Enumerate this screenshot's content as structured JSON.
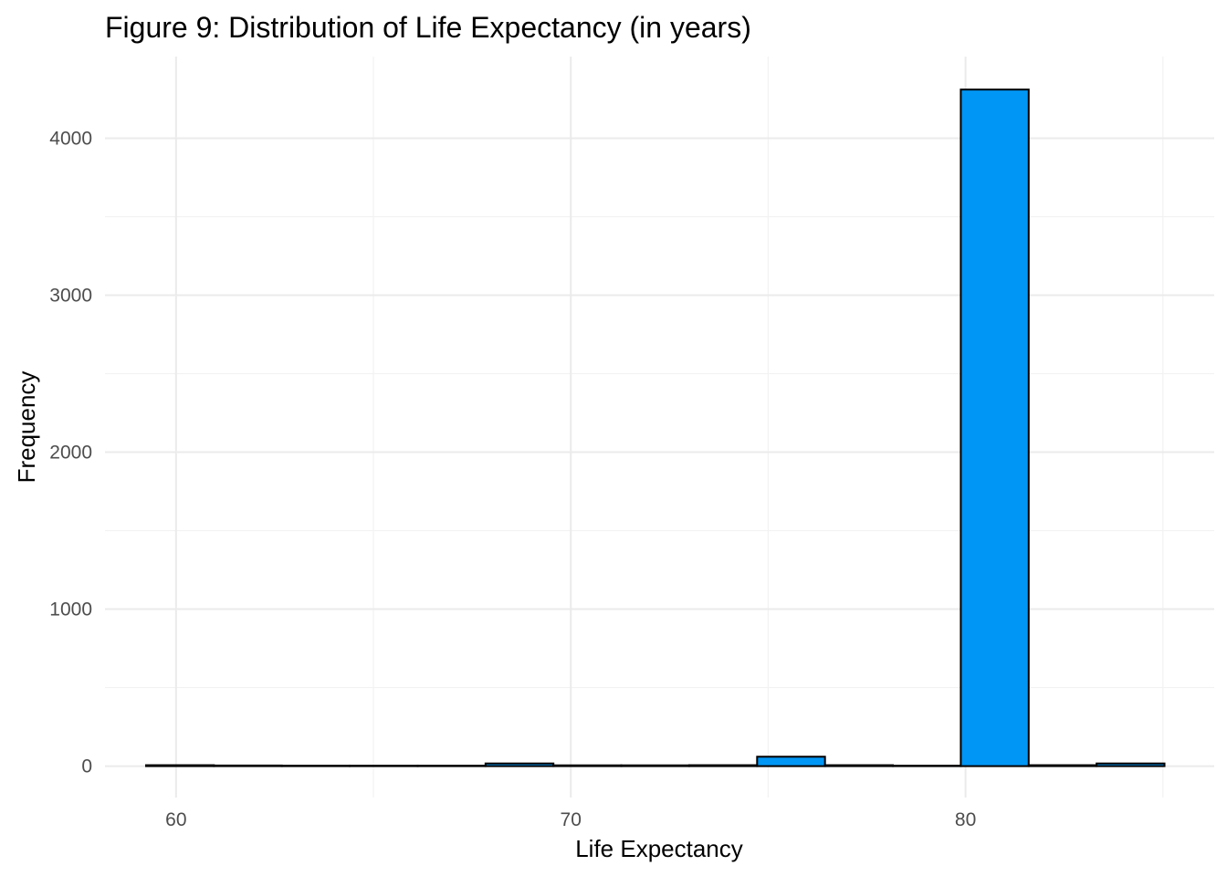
{
  "chart_data": {
    "type": "bar",
    "title": "Figure 9: Distribution of Life Expectancy (in years)",
    "xlabel": "Life Expectancy",
    "ylabel": "Frequency",
    "xlim": [
      58.2,
      86.3
    ],
    "ylim": [
      -200,
      4520
    ],
    "x_ticks": [
      60,
      70,
      80
    ],
    "y_ticks": [
      0,
      1000,
      2000,
      3000,
      4000
    ],
    "bin_width": 1.72,
    "bar_color": "#0096f5",
    "bar_outline": "#000000",
    "grid": true,
    "bins": [
      {
        "x0": 59.24,
        "x1": 60.96,
        "count": 6
      },
      {
        "x0": 60.96,
        "x1": 62.68,
        "count": 4
      },
      {
        "x0": 62.68,
        "x1": 64.4,
        "count": 0
      },
      {
        "x0": 64.4,
        "x1": 66.12,
        "count": 0
      },
      {
        "x0": 66.12,
        "x1": 67.84,
        "count": 0
      },
      {
        "x0": 67.84,
        "x1": 69.56,
        "count": 17
      },
      {
        "x0": 69.56,
        "x1": 71.28,
        "count": 5
      },
      {
        "x0": 71.28,
        "x1": 73.0,
        "count": 5
      },
      {
        "x0": 73.0,
        "x1": 74.72,
        "count": 6
      },
      {
        "x0": 74.72,
        "x1": 76.44,
        "count": 60
      },
      {
        "x0": 76.44,
        "x1": 78.16,
        "count": 6
      },
      {
        "x0": 78.16,
        "x1": 79.88,
        "count": 0
      },
      {
        "x0": 79.88,
        "x1": 81.6,
        "count": 4310
      },
      {
        "x0": 81.6,
        "x1": 83.32,
        "count": 6
      },
      {
        "x0": 83.32,
        "x1": 85.04,
        "count": 17
      }
    ]
  }
}
